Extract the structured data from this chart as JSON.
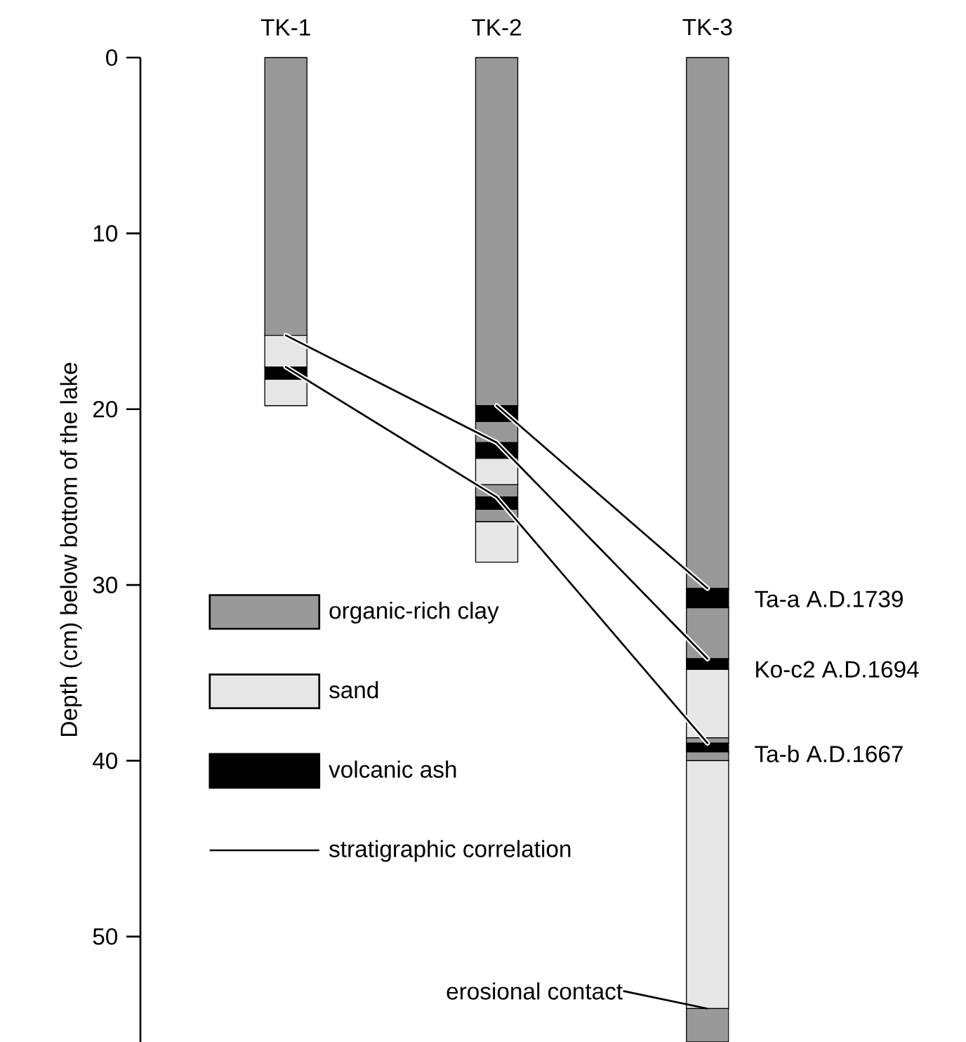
{
  "chart_data": {
    "type": "bar",
    "stacked": true,
    "ylabel": "Depth (cm) below bottom of the lake",
    "categories": [
      "TK-1",
      "TK-2",
      "TK-3"
    ],
    "ylim": [
      56,
      0
    ],
    "yticks": [
      0,
      10,
      20,
      30,
      40,
      50
    ],
    "legend": "bottom left",
    "series": [
      {
        "name": "organic-rich clay",
        "color": "#999999",
        "values": [
          15.8,
          19.8,
          30.2
        ]
      },
      {
        "name": "sand",
        "color": "#e6e6e6",
        "values": [
          1.8,
          null,
          null
        ]
      },
      {
        "name": "volcanic ash",
        "color": "#000000",
        "values": [
          0.7,
          0.9,
          1.1
        ]
      },
      {
        "color": "#999999",
        "values": [
          null,
          1.2,
          2.9
        ]
      },
      {
        "color": "#000000",
        "values": [
          null,
          0.9,
          0.6
        ]
      },
      {
        "color": "#e6e6e6",
        "values": [
          1.5,
          1.5,
          3.9
        ]
      },
      {
        "color": "#999999",
        "values": [
          null,
          0.7,
          0.3
        ]
      },
      {
        "color": "#000000",
        "values": [
          null,
          0.7,
          0.5
        ]
      },
      {
        "color": "#999999",
        "values": [
          null,
          0.7,
          0.5
        ]
      },
      {
        "color": "#e6e6e6",
        "values": [
          null,
          2.3,
          14.1
        ]
      },
      {
        "color": "#999999",
        "values": [
          null,
          null,
          1.9
        ]
      },
      {
        "type": "line",
        "name": "stratigraphic correlation",
        "color": "#000000",
        "values": [
          null,
          19.8,
          30.2
        ]
      },
      {
        "type": "line",
        "color": "#000000",
        "values": [
          15.8,
          21.9,
          34.2
        ]
      },
      {
        "type": "line",
        "color": "#000000",
        "values": [
          17.6,
          25.0,
          39.0
        ]
      }
    ],
    "annotations": [
      "Ta-a A.D.1739",
      "Ko-c2 A.D.1694",
      "Ta-b A.D.1667",
      {
        "text": "erosional contact",
        "x": "TK-3",
        "y": 54.1
      }
    ]
  }
}
